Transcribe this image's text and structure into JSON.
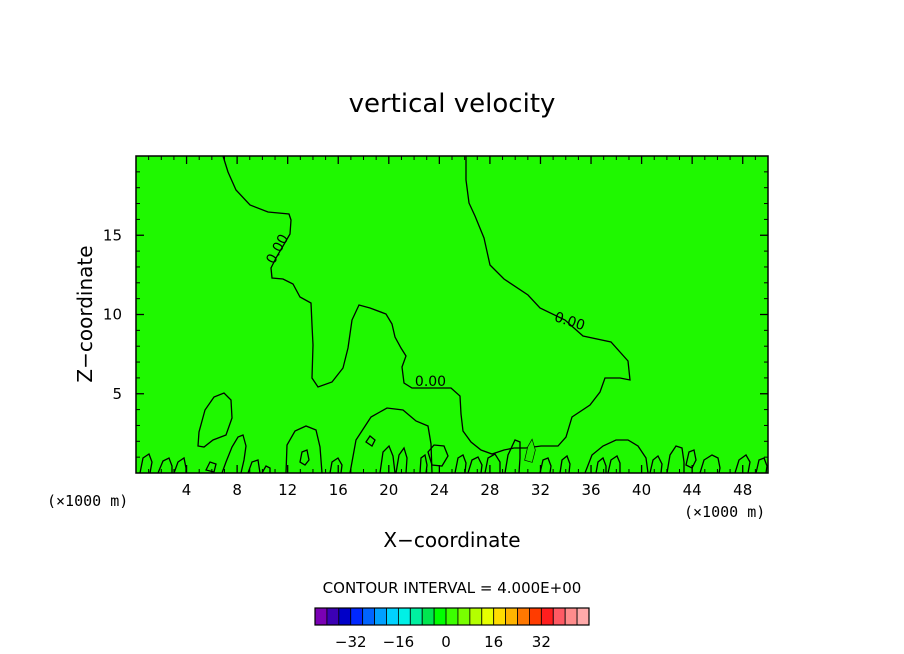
{
  "chart_data": {
    "type": "contour",
    "title": "vertical velocity",
    "xlabel": "X−coordinate",
    "ylabel": "Z−coordinate",
    "x_unit_left": "(×1000 m)",
    "x_unit_right": "(×1000 m)",
    "xlim": [
      0,
      50
    ],
    "ylim": [
      0,
      20
    ],
    "xticks": [
      4,
      8,
      12,
      16,
      20,
      24,
      28,
      32,
      36,
      40,
      44,
      48
    ],
    "yticks": [
      5,
      10,
      15
    ],
    "contour_level": 0,
    "contour_labels": [
      {
        "text": "0.00",
        "x": 11.5,
        "y": 14.0,
        "angle": -62
      },
      {
        "text": "0.00",
        "x": 34.2,
        "y": 9.3,
        "angle": 18
      },
      {
        "text": "0.00",
        "x": 23.3,
        "y": 5.5,
        "angle": 0
      }
    ],
    "fill_color": "#1ff800",
    "positive_region_color": "#23f000",
    "contour_color": "#000000",
    "contour_interval_text": "CONTOUR INTERVAL = 4.000E+00",
    "colorbar": {
      "colors": [
        "#7a00b4",
        "#3c00b4",
        "#0000c8",
        "#0028ff",
        "#0064ff",
        "#00a0ff",
        "#00d2ff",
        "#00f0e6",
        "#00f0a0",
        "#00e650",
        "#00ff00",
        "#3cff00",
        "#78ff00",
        "#b4ff00",
        "#e6ff00",
        "#ffdc00",
        "#ffb400",
        "#ff7800",
        "#ff3c00",
        "#ff1e1e",
        "#ff5a64",
        "#ff8c8c",
        "#ffaaaa"
      ],
      "tick_labels": [
        "−32",
        "−16",
        "0",
        "16",
        "32"
      ],
      "tick_values": [
        -32,
        -16,
        0,
        16,
        32
      ]
    }
  }
}
